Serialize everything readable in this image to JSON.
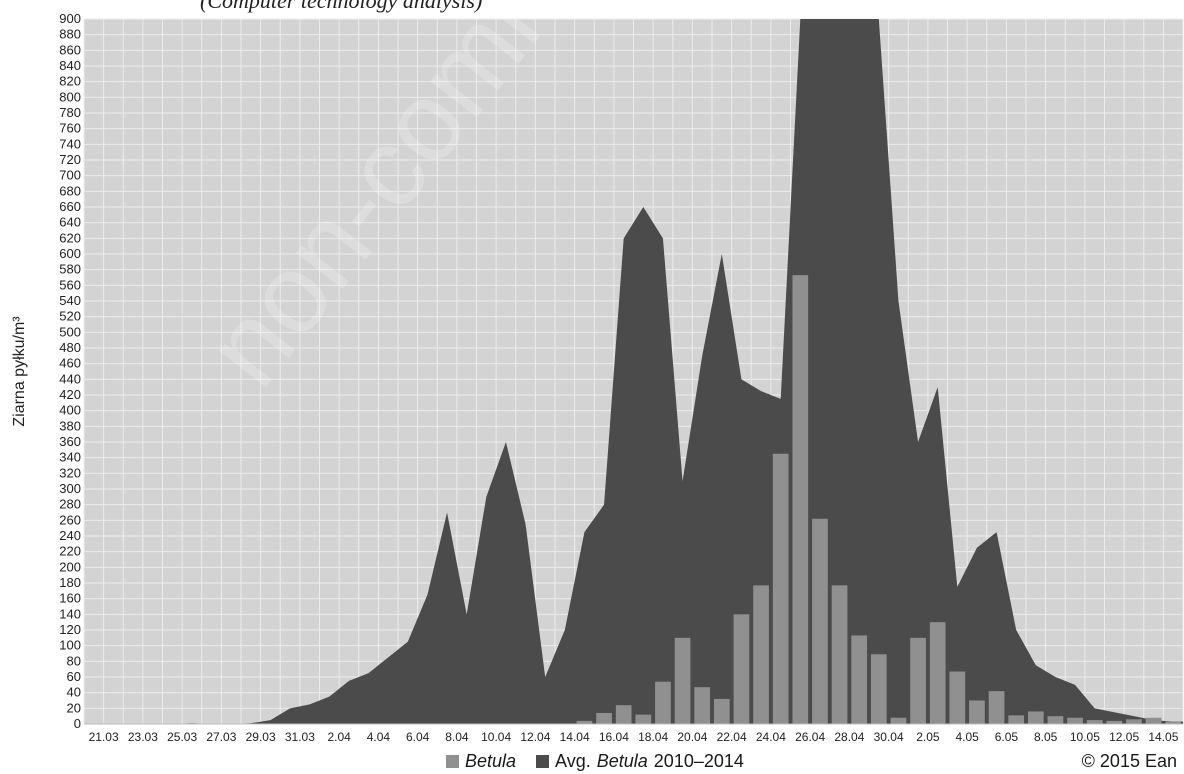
{
  "header_fragment": "(Computer technology analysis)",
  "legend": {
    "bar_label": "Betula",
    "area_label_prefix": "Avg.",
    "area_label_italic": "Betula",
    "area_label_suffix": "2010–2014"
  },
  "copyright": "© 2015 Ean",
  "watermark": "non-commercial use only",
  "colors": {
    "bar": "#909090",
    "area": "#4b4b4b",
    "plot_background": "#d3d3d3",
    "grid": "#ececec"
  },
  "chart_data": {
    "type": "bar",
    "ylabel": "Ziarna pyłku/m³",
    "ylim": [
      0,
      900
    ],
    "y_ticks": [
      0,
      20,
      40,
      60,
      80,
      100,
      120,
      140,
      160,
      180,
      200,
      220,
      240,
      260,
      280,
      300,
      320,
      340,
      360,
      380,
      400,
      420,
      440,
      460,
      480,
      500,
      520,
      540,
      560,
      580,
      600,
      620,
      640,
      660,
      680,
      700,
      720,
      740,
      760,
      780,
      800,
      820,
      840,
      860,
      880,
      900
    ],
    "x_tick_labels": [
      "21.03",
      "23.03",
      "25.03",
      "27.03",
      "29.03",
      "31.03",
      "2.04",
      "4.04",
      "6.04",
      "8.04",
      "10.04",
      "12.04",
      "14.04",
      "16.04",
      "18.04",
      "20.04",
      "22.04",
      "24.04",
      "26.04",
      "28.04",
      "30.04",
      "2.05",
      "4.05",
      "6.05",
      "8.05",
      "10.05",
      "12.05",
      "14.05"
    ],
    "days": 56,
    "series": [
      {
        "name": "Avg. Betula 2010–2014",
        "type": "area",
        "values": [
          0,
          0,
          0,
          0,
          0,
          1,
          0,
          0,
          1,
          5,
          20,
          25,
          35,
          55,
          65,
          85,
          105,
          165,
          270,
          140,
          290,
          360,
          255,
          60,
          120,
          245,
          280,
          620,
          660,
          620,
          310,
          470,
          600,
          440,
          425,
          415,
          900,
          900,
          900,
          900,
          900,
          540,
          360,
          430,
          175,
          225,
          245,
          120,
          75,
          60,
          50,
          20,
          15,
          10,
          5,
          3
        ]
      },
      {
        "name": "Betula",
        "type": "bar",
        "values": [
          0,
          0,
          0,
          0,
          0,
          0,
          0,
          0,
          0,
          0,
          0,
          0,
          0,
          0,
          0,
          0,
          0,
          0,
          0,
          0,
          0,
          0,
          0,
          0,
          0,
          4,
          14,
          24,
          12,
          54,
          110,
          47,
          32,
          140,
          177,
          345,
          573,
          262,
          177,
          113,
          89,
          8,
          110,
          130,
          67,
          30,
          42,
          11,
          16,
          10,
          8,
          5,
          4,
          6,
          8,
          3
        ]
      }
    ]
  }
}
